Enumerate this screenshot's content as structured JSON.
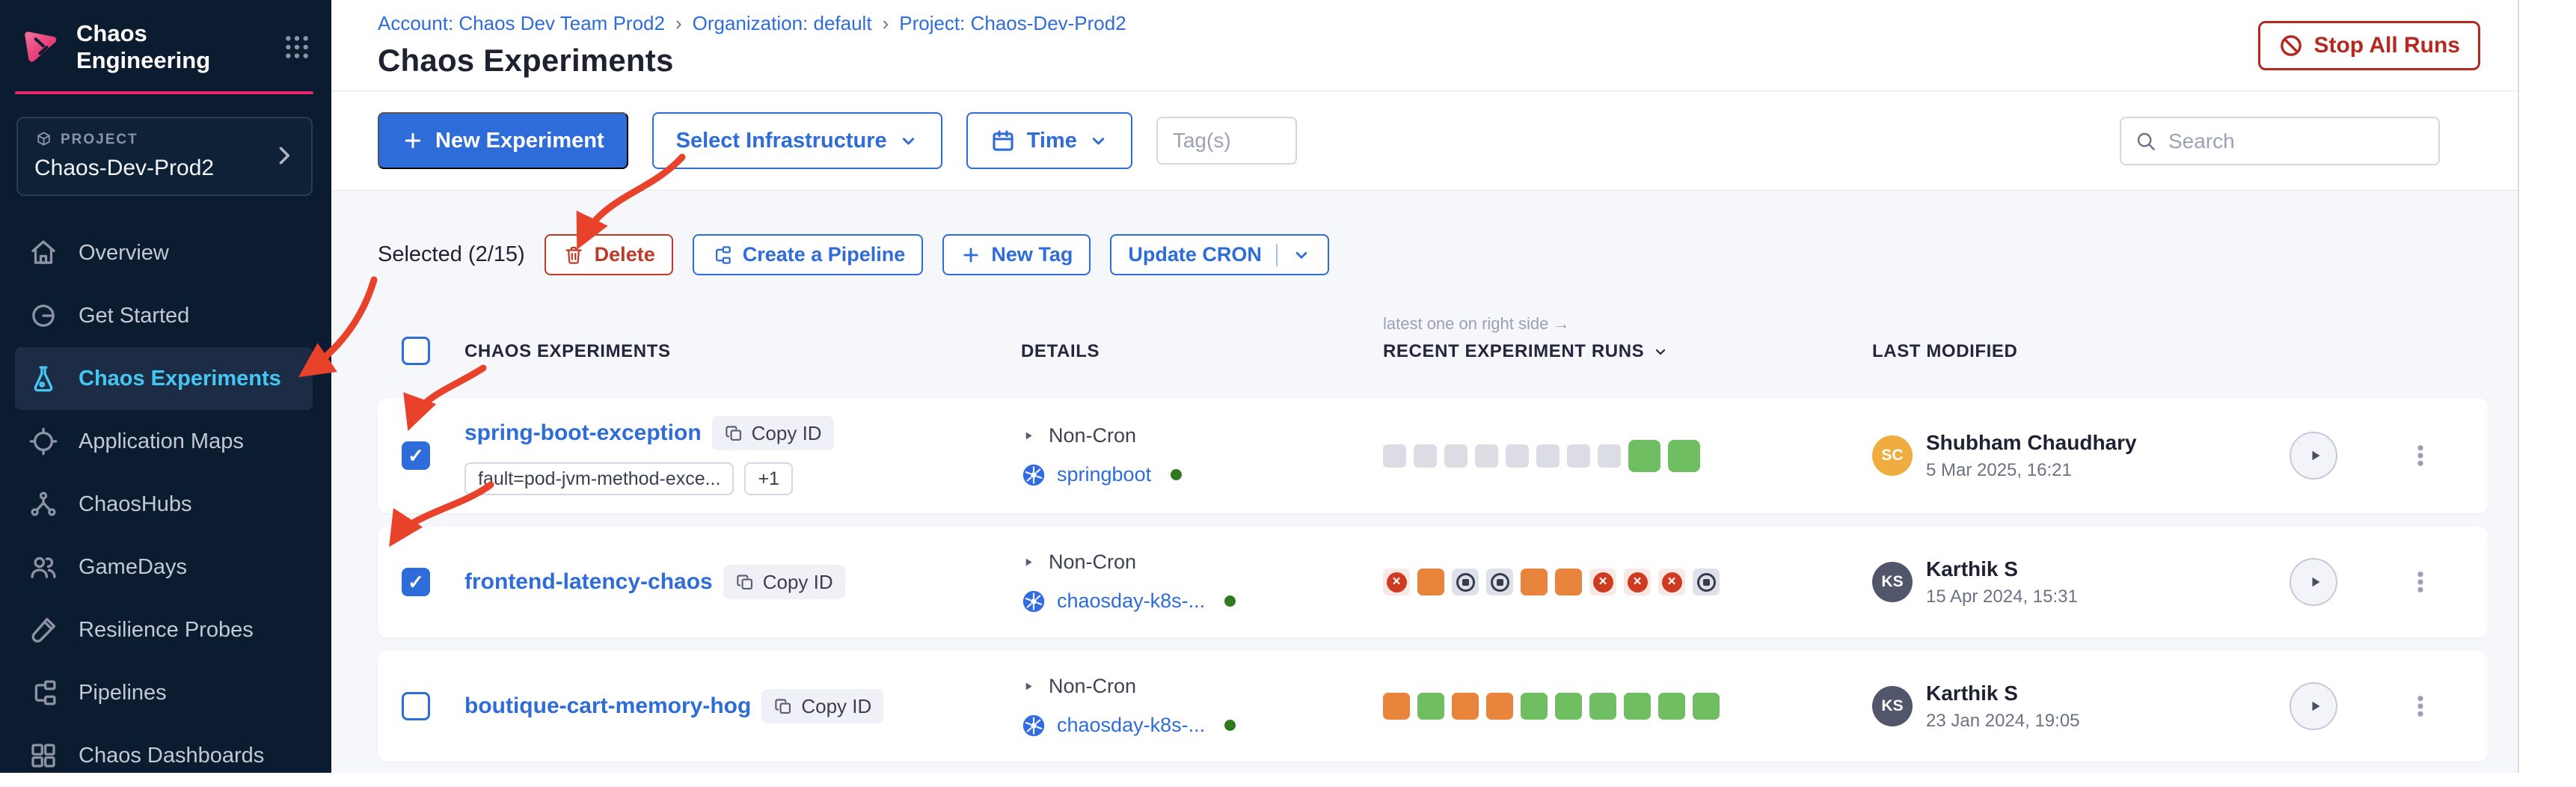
{
  "colors": {
    "brand_pink": "#e9246f",
    "primary_blue": "#2e6cd9",
    "link_blue": "#2f6cd8",
    "nav_active_blue": "#45c7f2",
    "sidebar_bg": "#0b1c30",
    "danger_red": "#bf3a26",
    "stop_red": "#b6291f",
    "annotation_red": "#e8432a",
    "run_passed_green": "#6fbe62",
    "run_error_orange": "#e8843c",
    "run_failed_red": "#ce3b20",
    "run_empty_gray": "#dcdde4",
    "infra_dot_green": "#2f7a1e"
  },
  "sidebar": {
    "app_title": "Chaos Engineering",
    "project_label": "PROJECT",
    "project_name": "Chaos-Dev-Prod2",
    "items": [
      {
        "label": "Overview",
        "icon": "home-icon",
        "active": false
      },
      {
        "label": "Get Started",
        "icon": "circle-slash-icon",
        "active": false
      },
      {
        "label": "Chaos Experiments",
        "icon": "flask-icon",
        "active": true
      },
      {
        "label": "Application Maps",
        "icon": "crosshair-icon",
        "active": false
      },
      {
        "label": "ChaosHubs",
        "icon": "network-icon",
        "active": false
      },
      {
        "label": "GameDays",
        "icon": "people-icon",
        "active": false
      },
      {
        "label": "Resilience Probes",
        "icon": "testtube-icon",
        "active": false
      },
      {
        "label": "Pipelines",
        "icon": "pipeline-icon",
        "active": false
      },
      {
        "label": "Chaos Dashboards",
        "icon": "dashboard-icon",
        "active": false
      }
    ]
  },
  "header": {
    "breadcrumb": [
      "Account: Chaos Dev Team Prod2",
      "Organization: default",
      "Project: Chaos-Dev-Prod2"
    ],
    "title": "Chaos Experiments",
    "stop_all_runs_label": "Stop All Runs"
  },
  "toolbar": {
    "new_experiment_label": "New Experiment",
    "select_infrastructure_label": "Select Infrastructure",
    "time_label": "Time",
    "tags_placeholder": "Tag(s)",
    "search_placeholder": "Search"
  },
  "bulk_actions": {
    "selected_label": "Selected (2/15)",
    "delete_label": "Delete",
    "create_pipeline_label": "Create a Pipeline",
    "new_tag_label": "New Tag",
    "update_cron_label": "Update CRON"
  },
  "table": {
    "note": "latest one on right side →",
    "columns": {
      "experiments": "CHAOS EXPERIMENTS",
      "details": "DETAILS",
      "runs": "RECENT EXPERIMENT RUNS",
      "modified": "LAST MODIFIED"
    },
    "copy_label": "Copy ID",
    "rows": [
      {
        "checked": true,
        "name": "spring-boot-exception",
        "tags": [
          "fault=pod-jvm-method-exce...",
          "+1"
        ],
        "cron": "Non-Cron",
        "infra": "springboot",
        "runs": [
          {
            "status": "empty"
          },
          {
            "status": "empty"
          },
          {
            "status": "empty"
          },
          {
            "status": "empty"
          },
          {
            "status": "empty"
          },
          {
            "status": "empty"
          },
          {
            "status": "empty"
          },
          {
            "status": "empty"
          },
          {
            "status": "passed",
            "big": true
          },
          {
            "status": "passed",
            "big": true
          }
        ],
        "modified_by": "Shubham Chaudhary",
        "initials": "SC",
        "avatar_color": "#eead3e",
        "modified_at": "5 Mar 2025, 16:21"
      },
      {
        "checked": true,
        "name": "frontend-latency-chaos",
        "tags": [],
        "cron": "Non-Cron",
        "infra": "chaosday-k8s-...",
        "runs": [
          {
            "status": "failed"
          },
          {
            "status": "error"
          },
          {
            "status": "stopped"
          },
          {
            "status": "stopped"
          },
          {
            "status": "error"
          },
          {
            "status": "error"
          },
          {
            "status": "failed"
          },
          {
            "status": "failed"
          },
          {
            "status": "failed"
          },
          {
            "status": "stopped"
          }
        ],
        "modified_by": "Karthik S",
        "initials": "KS",
        "avatar_color": "#51566a",
        "modified_at": "15 Apr 2024, 15:31"
      },
      {
        "checked": false,
        "name": "boutique-cart-memory-hog",
        "tags": [],
        "cron": "Non-Cron",
        "infra": "chaosday-k8s-...",
        "runs": [
          {
            "status": "error"
          },
          {
            "status": "passed"
          },
          {
            "status": "error"
          },
          {
            "status": "error"
          },
          {
            "status": "passed"
          },
          {
            "status": "passed"
          },
          {
            "status": "passed"
          },
          {
            "status": "passed"
          },
          {
            "status": "passed"
          },
          {
            "status": "passed"
          }
        ],
        "modified_by": "Karthik S",
        "initials": "KS",
        "avatar_color": "#51566a",
        "modified_at": "23 Jan 2024, 19:05"
      }
    ]
  }
}
